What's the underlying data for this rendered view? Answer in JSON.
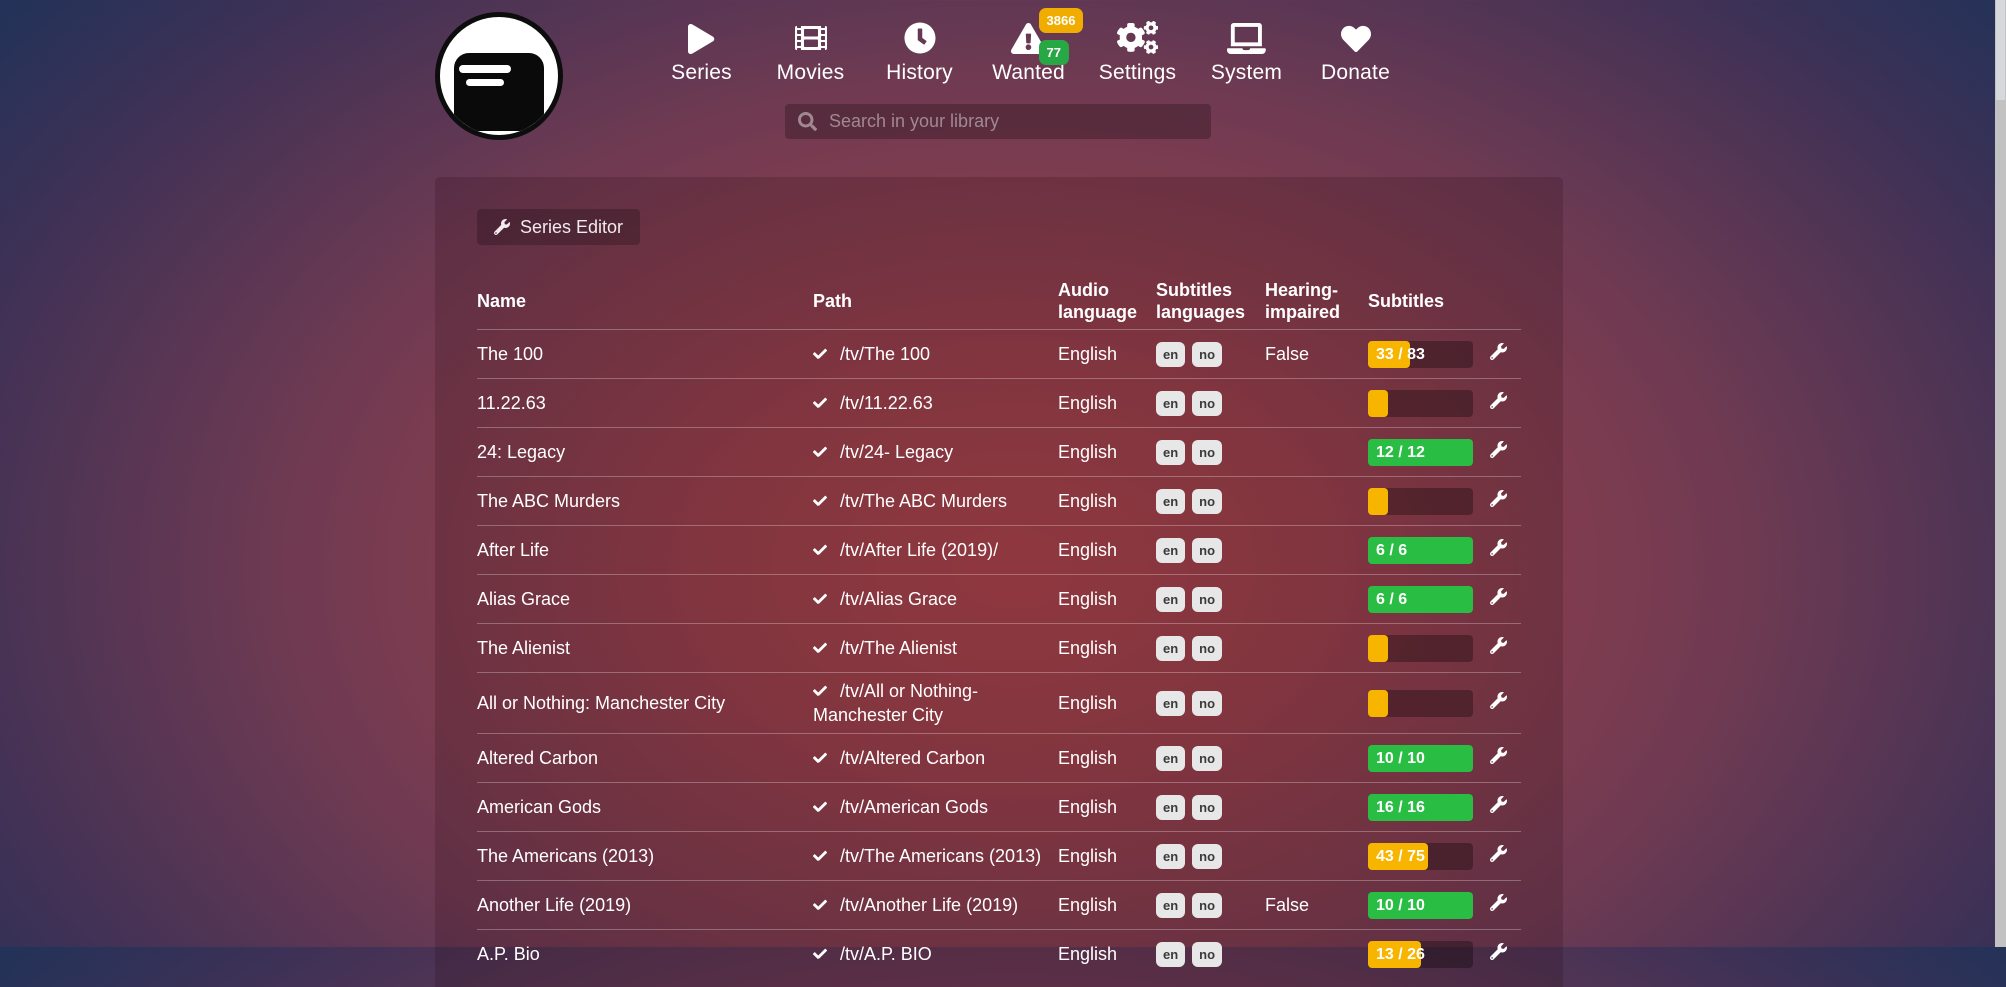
{
  "nav": {
    "items": [
      {
        "label": "Series",
        "icon": "play-icon"
      },
      {
        "label": "Movies",
        "icon": "film-icon"
      },
      {
        "label": "History",
        "icon": "clock-icon"
      },
      {
        "label": "Wanted",
        "icon": "warning-triangle-icon",
        "badges": [
          {
            "value": "3866",
            "color": "#f0ad00"
          },
          {
            "value": "77",
            "color": "#28a745"
          }
        ]
      },
      {
        "label": "Settings",
        "icon": "gears-icon"
      },
      {
        "label": "System",
        "icon": "laptop-icon"
      },
      {
        "label": "Donate",
        "icon": "heart-icon",
        "icon_color": "#de2f38"
      }
    ]
  },
  "search": {
    "placeholder": "Search in your library"
  },
  "toolbar": {
    "series_editor_label": "Series Editor"
  },
  "table": {
    "headers": [
      "Name",
      "Path",
      "Audio language",
      "Subtitles languages",
      "Hearing-impaired",
      "Subtitles"
    ],
    "rows": [
      {
        "name": "The 100",
        "path": "/tv/The 100",
        "audio": "English",
        "subtitle_languages": [
          "en",
          "no"
        ],
        "hearing_impaired": "False",
        "progress": {
          "label": "33 / 83",
          "percent": 40,
          "color": "yellow"
        }
      },
      {
        "name": "11.22.63",
        "path": "/tv/11.22.63",
        "audio": "English",
        "subtitle_languages": [
          "en",
          "no"
        ],
        "hearing_impaired": "",
        "progress": {
          "label": "",
          "percent": 19,
          "color": "yellow"
        }
      },
      {
        "name": "24: Legacy",
        "path": "/tv/24- Legacy",
        "audio": "English",
        "subtitle_languages": [
          "en",
          "no"
        ],
        "hearing_impaired": "",
        "progress": {
          "label": "12 / 12",
          "percent": 100,
          "color": "green"
        }
      },
      {
        "name": "The ABC Murders",
        "path": "/tv/The ABC Murders",
        "audio": "English",
        "subtitle_languages": [
          "en",
          "no"
        ],
        "hearing_impaired": "",
        "progress": {
          "label": "",
          "percent": 19,
          "color": "yellow"
        }
      },
      {
        "name": "After Life",
        "path": "/tv/After Life (2019)/",
        "audio": "English",
        "subtitle_languages": [
          "en",
          "no"
        ],
        "hearing_impaired": "",
        "progress": {
          "label": "6 / 6",
          "percent": 100,
          "color": "green"
        }
      },
      {
        "name": "Alias Grace",
        "path": "/tv/Alias Grace",
        "audio": "English",
        "subtitle_languages": [
          "en",
          "no"
        ],
        "hearing_impaired": "",
        "progress": {
          "label": "6 / 6",
          "percent": 100,
          "color": "green"
        }
      },
      {
        "name": "The Alienist",
        "path": "/tv/The Alienist",
        "audio": "English",
        "subtitle_languages": [
          "en",
          "no"
        ],
        "hearing_impaired": "",
        "progress": {
          "label": "",
          "percent": 19,
          "color": "yellow"
        }
      },
      {
        "name": "All or Nothing: Manchester City",
        "path": "/tv/All or Nothing- Manchester City",
        "audio": "English",
        "subtitle_languages": [
          "en",
          "no"
        ],
        "hearing_impaired": "",
        "progress": {
          "label": "",
          "percent": 19,
          "color": "yellow"
        }
      },
      {
        "name": "Altered Carbon",
        "path": "/tv/Altered Carbon",
        "audio": "English",
        "subtitle_languages": [
          "en",
          "no"
        ],
        "hearing_impaired": "",
        "progress": {
          "label": "10 / 10",
          "percent": 100,
          "color": "green"
        }
      },
      {
        "name": "American Gods",
        "path": "/tv/American Gods",
        "audio": "English",
        "subtitle_languages": [
          "en",
          "no"
        ],
        "hearing_impaired": "",
        "progress": {
          "label": "16 / 16",
          "percent": 100,
          "color": "green"
        }
      },
      {
        "name": "The Americans (2013)",
        "path": "/tv/The Americans (2013)",
        "audio": "English",
        "subtitle_languages": [
          "en",
          "no"
        ],
        "hearing_impaired": "",
        "progress": {
          "label": "43 / 75",
          "percent": 57,
          "color": "yellow"
        }
      },
      {
        "name": "Another Life (2019)",
        "path": "/tv/Another Life (2019)",
        "audio": "English",
        "subtitle_languages": [
          "en",
          "no"
        ],
        "hearing_impaired": "False",
        "progress": {
          "label": "10 / 10",
          "percent": 100,
          "color": "green"
        }
      },
      {
        "name": "A.P. Bio",
        "path": "/tv/A.P. BIO",
        "audio": "English",
        "subtitle_languages": [
          "en",
          "no"
        ],
        "hearing_impaired": "",
        "progress": {
          "label": "13 / 26",
          "percent": 50,
          "color": "yellow"
        }
      }
    ]
  },
  "colors": {
    "progress_yellow": "#f7b500",
    "progress_green": "#2abd44",
    "language_badge_bg": "#e7e7e7",
    "donate_heart_red": "#de2f38",
    "wanted_badge_yellow": "#f0ad00",
    "wanted_badge_green": "#28a745"
  }
}
